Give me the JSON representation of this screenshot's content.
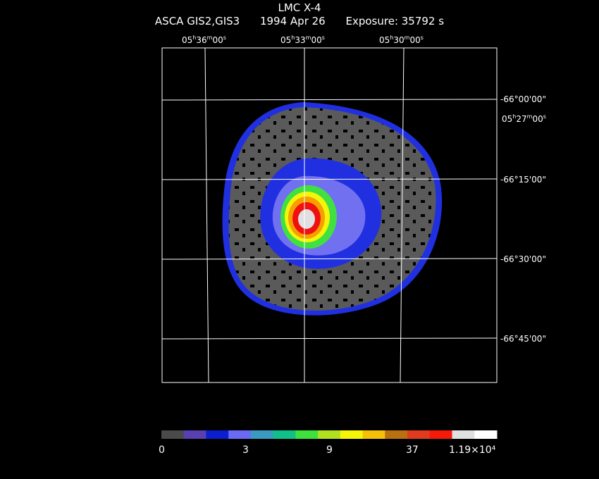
{
  "header": {
    "title": "LMC X-4",
    "instrument": "ASCA GIS2,GIS3",
    "date": "1994 Apr 26",
    "exposure": "Exposure: 35792 s"
  },
  "axes": {
    "ra_labels": [
      "05h36m00s",
      "05h33m00s",
      "05h30m00s",
      "05h27m00s"
    ],
    "dec_labels": [
      "-66°00'00\"",
      "-66°15'00\"",
      "-66°30'00\"",
      "-66°45'00\""
    ]
  },
  "colorbar": {
    "colors": [
      "#4a4a4a",
      "#5a3fb0",
      "#0a1fd0",
      "#6a6af5",
      "#3a9ac0",
      "#10c088",
      "#3ee03e",
      "#b0e020",
      "#f5f50a",
      "#f5c00a",
      "#b87010",
      "#e03a20",
      "#f51a0a",
      "#e0e0e0",
      "#ffffff"
    ],
    "labels": [
      "0",
      "3",
      "9",
      "37",
      "1.19×10⁴"
    ]
  },
  "image": {
    "background_color": "#000000",
    "frame_color": "#ffffff",
    "source_colors": {
      "gray": "#5a5a5a",
      "edge_blue": "#2030e0",
      "light_blue": "#7070f0",
      "green": "#40e040",
      "yellow": "#f5f50a",
      "orange": "#f5a000",
      "red": "#f01010",
      "white": "#e0e0e0"
    }
  }
}
